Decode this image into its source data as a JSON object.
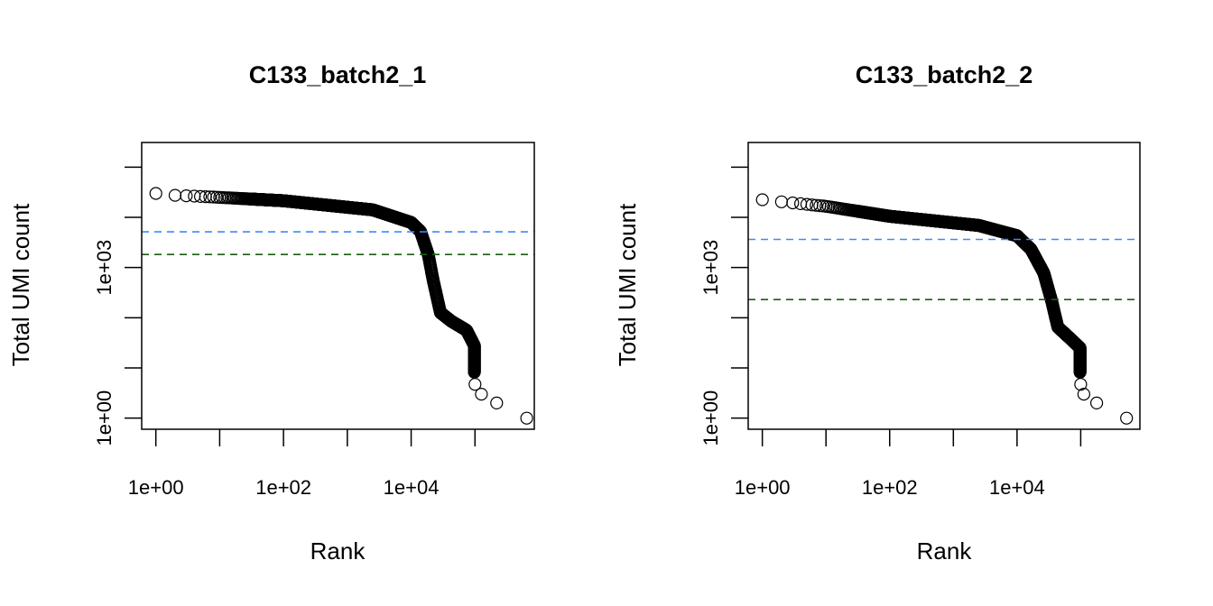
{
  "chart_data": [
    {
      "type": "scatter",
      "title": "C133_batch2_1",
      "xlabel": "Rank",
      "ylabel": "Total UMI count",
      "x_scale": "log",
      "y_scale": "log",
      "xlim": [
        0.6,
        850000
      ],
      "ylim": [
        0.6,
        310000
      ],
      "x_ticks": [
        1,
        10,
        100,
        1000,
        10000,
        100000
      ],
      "x_tick_labels": [
        "1e+00",
        "1e+02",
        "1e+04"
      ],
      "x_tick_label_values": [
        1,
        100,
        10000
      ],
      "y_ticks": [
        1,
        10,
        100,
        1000,
        10000,
        100000
      ],
      "y_tick_labels": [
        "1e+00",
        "1e+03"
      ],
      "y_tick_label_values": [
        1,
        1000
      ],
      "grid": false,
      "marker": "open-circle",
      "points": [
        [
          1,
          30000
        ],
        [
          2,
          27500
        ],
        [
          10,
          25000
        ],
        [
          100,
          21400
        ],
        [
          2500,
          14100
        ],
        [
          10000,
          7900
        ],
        [
          14000,
          5250
        ],
        [
          18600,
          1780
        ],
        [
          22000,
          575
        ],
        [
          28800,
          126
        ],
        [
          42700,
          85
        ],
        [
          74000,
          56
        ],
        [
          97700,
          28
        ],
        [
          97700,
          8
        ],
        [
          100000,
          4.7
        ],
        [
          126000,
          3
        ],
        [
          219000,
          2
        ],
        [
          646000,
          1
        ]
      ],
      "hlines": [
        {
          "y": 5150,
          "color": "#3d8af7",
          "style": "dashed"
        },
        {
          "y": 1820,
          "color": "#1a5e12",
          "style": "dashed"
        }
      ]
    },
    {
      "type": "scatter",
      "title": "C133_batch2_2",
      "xlabel": "Rank",
      "ylabel": "Total UMI count",
      "x_scale": "log",
      "y_scale": "log",
      "xlim": [
        0.6,
        850000
      ],
      "ylim": [
        0.6,
        310000
      ],
      "x_ticks": [
        1,
        10,
        100,
        1000,
        10000,
        100000
      ],
      "x_tick_labels": [
        "1e+00",
        "1e+02",
        "1e+04"
      ],
      "x_tick_label_values": [
        1,
        100,
        10000
      ],
      "y_ticks": [
        1,
        10,
        100,
        1000,
        10000,
        100000
      ],
      "y_tick_labels": [
        "1e+00",
        "1e+03"
      ],
      "y_tick_labels_values_note": "",
      "y_tick_label_values": [
        1,
        1000
      ],
      "grid": false,
      "marker": "open-circle",
      "points": [
        [
          1,
          22400
        ],
        [
          2,
          20400
        ],
        [
          10,
          16600
        ],
        [
          100,
          10500
        ],
        [
          2500,
          6900
        ],
        [
          10000,
          4300
        ],
        [
          16600,
          2300
        ],
        [
          26300,
          780
        ],
        [
          34700,
          224
        ],
        [
          43700,
          65
        ],
        [
          70800,
          37
        ],
        [
          97700,
          25
        ],
        [
          97700,
          8
        ],
        [
          100000,
          4.7
        ],
        [
          112000,
          3
        ],
        [
          178000,
          2
        ],
        [
          525000,
          1
        ]
      ],
      "hlines": [
        {
          "y": 3630,
          "color": "#3d8af7",
          "style": "dashed"
        },
        {
          "y": 230,
          "color": "#1a5e12",
          "style": "dashed"
        }
      ]
    }
  ]
}
